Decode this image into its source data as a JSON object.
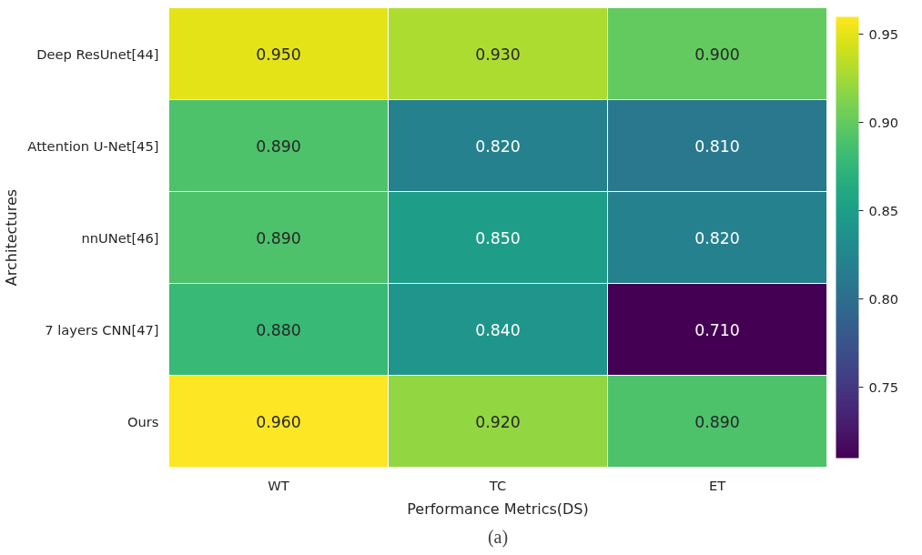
{
  "chart_data": {
    "type": "heatmap",
    "categories": [
      "WT",
      "TC",
      "ET"
    ],
    "y_categories": [
      "Deep ResUnet[44]",
      "Attention U-Net[45]",
      "nnUNet[46]",
      "7 layers CNN[47]",
      "Ours"
    ],
    "cells": [
      [
        0.95,
        0.93,
        0.9
      ],
      [
        0.89,
        0.82,
        0.81
      ],
      [
        0.89,
        0.85,
        0.82
      ],
      [
        0.88,
        0.84,
        0.71
      ],
      [
        0.96,
        0.92,
        0.89
      ]
    ],
    "cell_labels": [
      [
        "0.950",
        "0.930",
        "0.900"
      ],
      [
        "0.890",
        "0.820",
        "0.810"
      ],
      [
        "0.890",
        "0.850",
        "0.820"
      ],
      [
        "0.880",
        "0.840",
        "0.710"
      ],
      [
        "0.960",
        "0.920",
        "0.890"
      ]
    ],
    "clim": [
      0.71,
      0.96
    ],
    "cticks": [
      0.75,
      {
        "value": 0.8,
        "label": "0.80"
      },
      0.85,
      {
        "value": 0.9,
        "label": "0.90"
      },
      0.95
    ],
    "xlabel": "Performance Metrics(DS)",
    "ylabel": "Architectures",
    "annotations": [
      "(a)"
    ]
  }
}
